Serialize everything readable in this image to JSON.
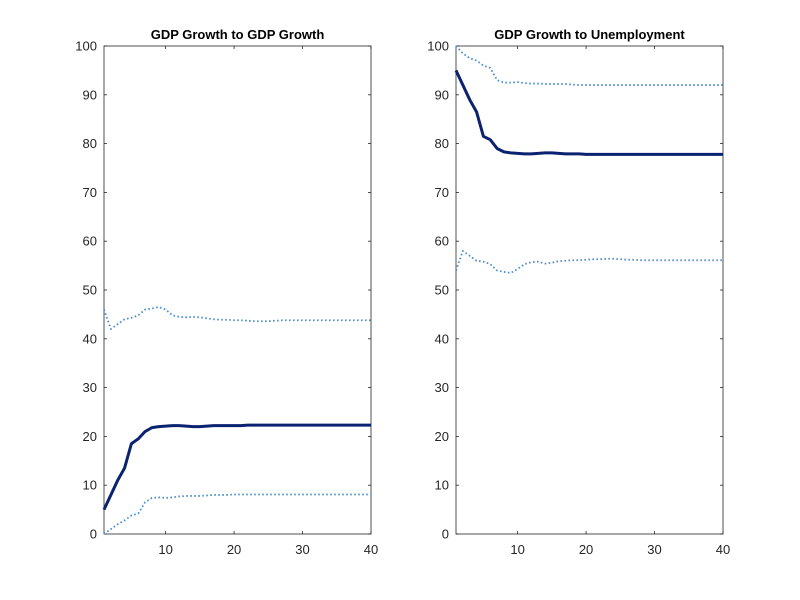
{
  "chart_data": [
    {
      "type": "line",
      "title": "GDP Growth to GDP Growth",
      "xlabel": "",
      "ylabel": "",
      "xlim": [
        1,
        40
      ],
      "ylim": [
        0,
        100
      ],
      "xticks": [
        10,
        20,
        30,
        40
      ],
      "yticks": [
        0,
        10,
        20,
        30,
        40,
        50,
        60,
        70,
        80,
        90,
        100
      ],
      "grid": false,
      "colors": {
        "median": "#0b2270",
        "band": "#4a8fd4"
      },
      "x": [
        1,
        2,
        3,
        4,
        5,
        6,
        7,
        8,
        9,
        10,
        11,
        12,
        13,
        14,
        15,
        16,
        17,
        18,
        19,
        20,
        21,
        22,
        23,
        24,
        25,
        26,
        27,
        28,
        29,
        30,
        31,
        32,
        33,
        34,
        35,
        36,
        37,
        38,
        39,
        40
      ],
      "series": [
        {
          "role": "median",
          "style": "solid",
          "values": [
            5,
            8,
            11,
            13.5,
            18.5,
            19.5,
            21,
            21.8,
            22,
            22.1,
            22.2,
            22.2,
            22.1,
            22,
            22,
            22.1,
            22.2,
            22.2,
            22.2,
            22.2,
            22.2,
            22.3,
            22.3,
            22.3,
            22.3,
            22.3,
            22.3,
            22.3,
            22.3,
            22.3,
            22.3,
            22.3,
            22.3,
            22.3,
            22.3,
            22.3,
            22.3,
            22.3,
            22.3,
            22.3
          ]
        },
        {
          "role": "upper",
          "style": "dotted",
          "values": [
            46,
            42,
            43,
            44,
            44.3,
            44.8,
            46,
            46.2,
            46.5,
            46,
            44.8,
            44.5,
            44.4,
            44.5,
            44.4,
            44.2,
            44,
            43.9,
            43.9,
            43.8,
            43.8,
            43.7,
            43.6,
            43.6,
            43.6,
            43.7,
            43.8,
            43.8,
            43.8,
            43.8,
            43.8,
            43.8,
            43.8,
            43.8,
            43.8,
            43.8,
            43.8,
            43.8,
            43.8,
            43.8
          ]
        },
        {
          "role": "lower",
          "style": "dotted",
          "values": [
            0,
            1,
            2,
            2.8,
            3.8,
            4.2,
            6.5,
            7.4,
            7.5,
            7.4,
            7.5,
            7.7,
            7.8,
            7.8,
            7.8,
            7.9,
            8,
            8,
            8,
            8.1,
            8.1,
            8.1,
            8.1,
            8.1,
            8.1,
            8.1,
            8.1,
            8.1,
            8.1,
            8.1,
            8.1,
            8.1,
            8.1,
            8.1,
            8.1,
            8.1,
            8.1,
            8.1,
            8.1,
            8.1
          ]
        }
      ]
    },
    {
      "type": "line",
      "title": "GDP Growth to Unemployment",
      "xlabel": "",
      "ylabel": "",
      "xlim": [
        1,
        40
      ],
      "ylim": [
        0,
        100
      ],
      "xticks": [
        10,
        20,
        30,
        40
      ],
      "yticks": [
        0,
        10,
        20,
        30,
        40,
        50,
        60,
        70,
        80,
        90,
        100
      ],
      "grid": false,
      "colors": {
        "median": "#0b2270",
        "band": "#4a8fd4"
      },
      "x": [
        1,
        2,
        3,
        4,
        5,
        6,
        7,
        8,
        9,
        10,
        11,
        12,
        13,
        14,
        15,
        16,
        17,
        18,
        19,
        20,
        21,
        22,
        23,
        24,
        25,
        26,
        27,
        28,
        29,
        30,
        31,
        32,
        33,
        34,
        35,
        36,
        37,
        38,
        39,
        40
      ],
      "series": [
        {
          "role": "median",
          "style": "solid",
          "values": [
            95,
            92,
            89,
            86.5,
            81.5,
            80.8,
            79,
            78.3,
            78.1,
            78,
            77.9,
            77.9,
            78,
            78.1,
            78.1,
            78,
            77.9,
            77.9,
            77.9,
            77.8,
            77.8,
            77.8,
            77.8,
            77.8,
            77.8,
            77.8,
            77.8,
            77.8,
            77.8,
            77.8,
            77.8,
            77.8,
            77.8,
            77.8,
            77.8,
            77.8,
            77.8,
            77.8,
            77.8,
            77.8
          ]
        },
        {
          "role": "upper",
          "style": "dotted",
          "values": [
            100,
            98.5,
            97.5,
            97,
            96,
            95.5,
            93,
            92.5,
            92.5,
            92.6,
            92.4,
            92.3,
            92.3,
            92.2,
            92.2,
            92.2,
            92.2,
            92.1,
            92,
            92,
            92,
            92,
            92,
            92,
            92,
            92,
            92,
            92,
            92,
            92,
            92,
            92,
            92,
            92,
            92,
            92,
            92,
            92,
            92,
            92
          ]
        },
        {
          "role": "lower",
          "style": "dotted",
          "values": [
            54,
            58,
            57,
            56,
            55.8,
            55.3,
            54,
            53.7,
            53.5,
            54.3,
            55.3,
            55.7,
            55.8,
            55.4,
            55.6,
            55.9,
            56,
            56.1,
            56.1,
            56.2,
            56.3,
            56.3,
            56.4,
            56.4,
            56.3,
            56.2,
            56.2,
            56.1,
            56.1,
            56.1,
            56.1,
            56.1,
            56.1,
            56.1,
            56.1,
            56.1,
            56.1,
            56.1,
            56.1,
            56.1
          ]
        }
      ]
    }
  ]
}
